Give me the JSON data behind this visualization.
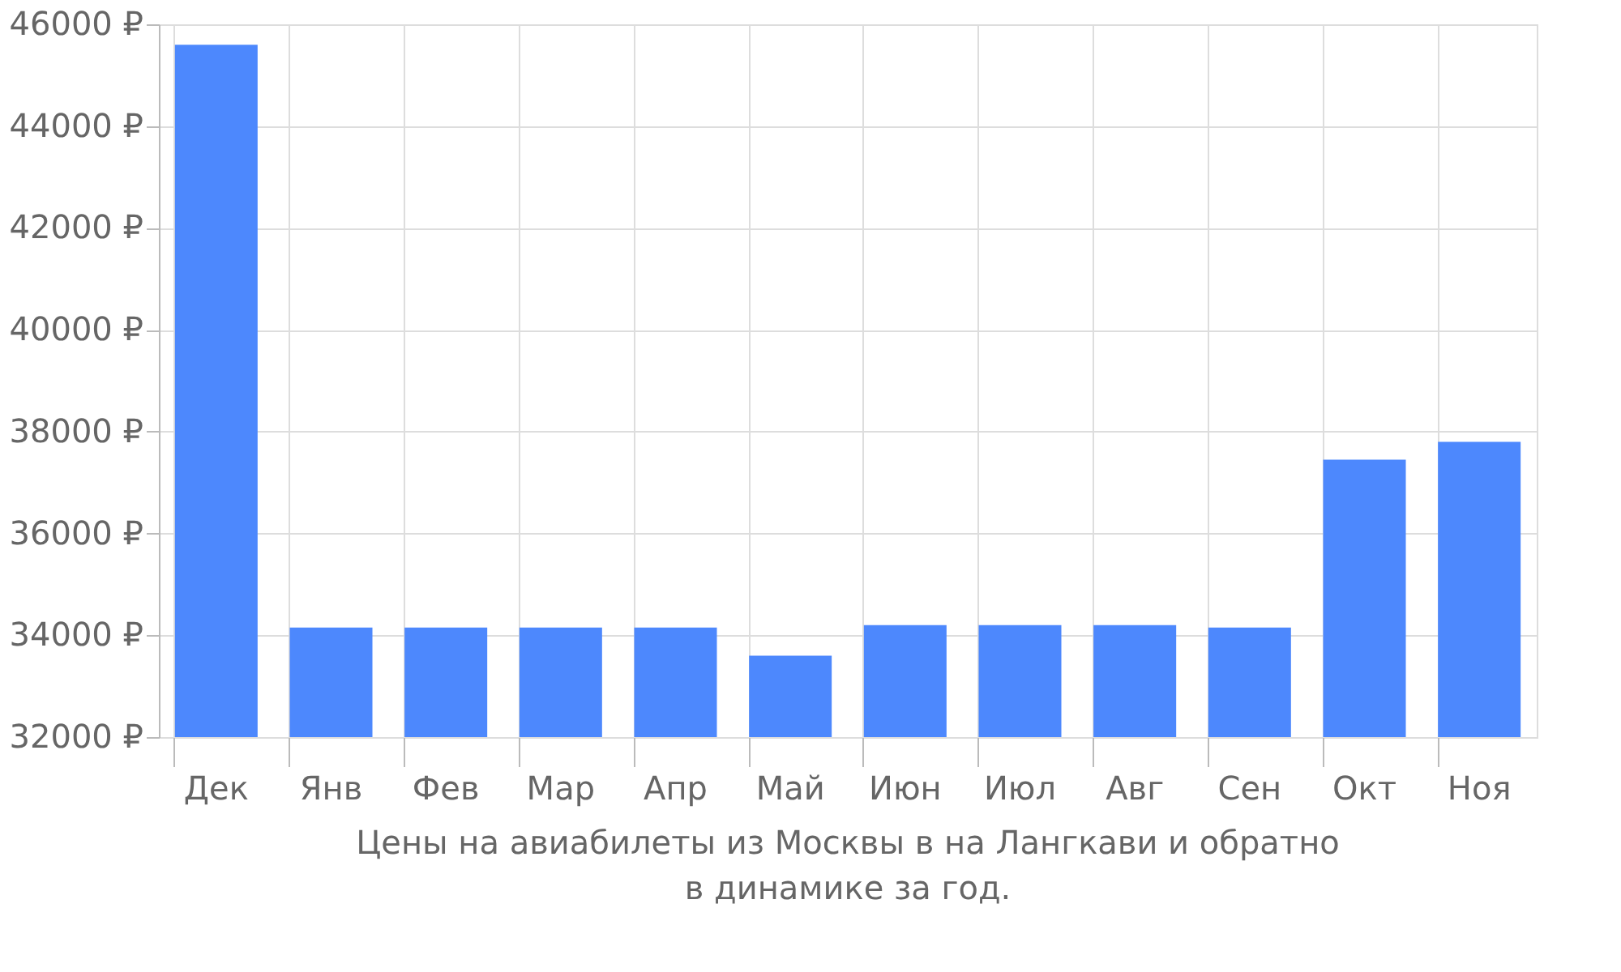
{
  "chart_data": {
    "type": "bar",
    "categories": [
      "Дек",
      "Янв",
      "Фев",
      "Мар",
      "Апр",
      "Май",
      "Июн",
      "Июл",
      "Авг",
      "Сен",
      "Окт",
      "Ноя"
    ],
    "values": [
      45600,
      34150,
      34150,
      34150,
      34150,
      33600,
      34200,
      34200,
      34200,
      34150,
      37450,
      37800
    ],
    "color": "#4d88fd",
    "ylim": [
      32000,
      46000
    ],
    "yticks": [
      {
        "value": 32000,
        "label": "32000 ₽"
      },
      {
        "value": 34000,
        "label": "34000 ₽"
      },
      {
        "value": 36000,
        "label": "36000 ₽"
      },
      {
        "value": 38000,
        "label": "38000 ₽"
      },
      {
        "value": 40000,
        "label": "40000 ₽"
      },
      {
        "value": 42000,
        "label": "42000 ₽"
      },
      {
        "value": 44000,
        "label": "44000 ₽"
      },
      {
        "value": 46000,
        "label": "46000 ₽"
      }
    ],
    "grid": true,
    "annotations": [
      "Цены на авиабилеты из Москвы в на Лангкави и обратно",
      "в динамике за год."
    ]
  }
}
